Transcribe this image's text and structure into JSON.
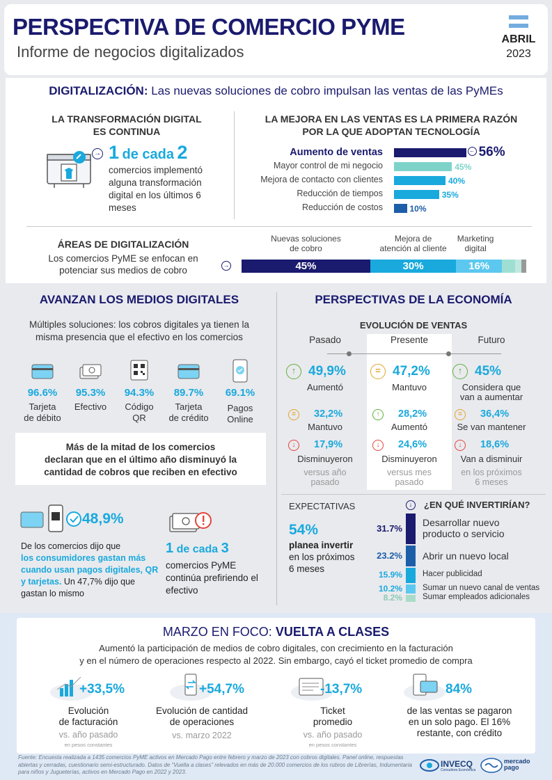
{
  "header": {
    "title": "PERSPECTIVA DE COMERCIO PYME",
    "subtitle": "Informe de negocios digitalizados",
    "month": "ABRIL",
    "year": "2023"
  },
  "digital": {
    "heading_bold": "DIGITALIZACIÓN:",
    "heading_rest": "Las nuevas soluciones de cobro impulsan las ventas de las PyMEs",
    "left_title_1": "LA TRANSFORMACIÓN DIGITAL",
    "left_title_2": "ES CONTINUA",
    "stat_a": "1",
    "stat_b": "de cada",
    "stat_c": "2",
    "stat_desc_1": "comercios implementó",
    "stat_desc_2": "alguna transformación",
    "stat_desc_3": "digital en los últimos 6",
    "stat_desc_4": "meses",
    "right_title_1": "LA MEJORA EN LAS VENTAS ES LA PRIMERA RAZÓN",
    "right_title_2": "POR LA QUE ADOPTAN TECNOLOGÍA",
    "reasons": [
      {
        "label": "Aumento de ventas",
        "value": "56%",
        "pct": 56
      },
      {
        "label": "Mayor control de mi negocio",
        "value": "45%",
        "pct": 45
      },
      {
        "label": "Mejora de contacto con clientes",
        "value": "40%",
        "pct": 40
      },
      {
        "label": "Reducción de tiempos",
        "value": "35%",
        "pct": 35
      },
      {
        "label": "Reducción de costos",
        "value": "10%",
        "pct": 10
      }
    ],
    "areas_title": "ÁREAS DE DIGITALIZACIÓN",
    "areas_desc_1": "Los comercios PyME se enfocan en",
    "areas_desc_2": "potenciar sus medios de cobro",
    "areas": [
      {
        "label_1": "Nuevas soluciones",
        "label_2": "de cobro",
        "value": "45%",
        "pct": 45,
        "color": "#1a1a6e"
      },
      {
        "label_1": "Mejora de",
        "label_2": "atención al cliente",
        "value": "30%",
        "pct": 30,
        "color": "#19a9dd"
      },
      {
        "label_1": "Marketing",
        "label_2": "digital",
        "value": "16%",
        "pct": 16,
        "color": "#5cc8ef"
      }
    ]
  },
  "medios": {
    "title": "AVANZAN LOS MEDIOS DIGITALES",
    "desc_1": "Múltiples soluciones: los cobros digitales ya tienen la",
    "desc_2": "misma presencia que el efectivo en los comercios",
    "methods": [
      {
        "value": "96.6%",
        "l1": "Tarjeta",
        "l2": "de débito",
        "icon": "debit-card-icon"
      },
      {
        "value": "95.3%",
        "l1": "Efectivo",
        "l2": "",
        "icon": "cash-icon"
      },
      {
        "value": "94.3%",
        "l1": "Código",
        "l2": "QR",
        "icon": "qr-code-icon"
      },
      {
        "value": "89.7%",
        "l1": "Tarjeta",
        "l2": "de crédito",
        "icon": "credit-card-icon"
      },
      {
        "value": "69.1%",
        "l1": "Pagos",
        "l2": "Online",
        "icon": "phone-payment-icon"
      }
    ],
    "note_1": "Más de la mitad de los comercios",
    "note_2": "declaran que en el último año disminuyó la",
    "note_3": "cantidad de cobros que reciben en efectivo",
    "digital_pct": "48,9%",
    "digital_d1": "De los comercios dijo que",
    "digital_d2": "los consumidores gastan más",
    "digital_d3": "cuando usan pagos digitales, QR",
    "digital_d4": "y tarjetas.",
    "digital_d5": "Un 47,7% dijo que",
    "digital_d6": "gastan lo mismo",
    "cash_a": "1",
    "cash_b": "de cada",
    "cash_c": "3",
    "cash_d1": "comercios PyME",
    "cash_d2": "continúa prefiriendo el",
    "cash_d3": "efectivo"
  },
  "economia": {
    "title": "PERSPECTIVAS DE LA ECONOMÍA",
    "subtitle": "EVOLUCIÓN DE VENTAS",
    "columns": [
      {
        "head": "Pasado",
        "r1v": "49,9%",
        "r1l": "Aumentó",
        "r1l2": "",
        "r2v": "32,2%",
        "r2l": "Mantuvo",
        "r3v": "17,9%",
        "r3l": "Disminuyeron",
        "foot1": "versus año",
        "foot2": "pasado",
        "i1": "up",
        "i2": "eq"
      },
      {
        "head": "Presente",
        "r1v": "47,2%",
        "r1l": "Mantuvo",
        "r1l2": "",
        "r2v": "28,2%",
        "r2l": "Aumentó",
        "r3v": "24,6%",
        "r3l": "Disminuyeron",
        "foot1": "versus mes",
        "foot2": "pasado",
        "i1": "eq",
        "i2": "up"
      },
      {
        "head": "Futuro",
        "r1v": "45%",
        "r1l": "Considera que",
        "r1l2": "van a aumentar",
        "r2v": "36,4%",
        "r2l": "Se van mantener",
        "r3v": "18,6%",
        "r3l": "Van a disminuir",
        "foot1": "en los próximos",
        "foot2": "6 meses",
        "i1": "up",
        "i2": "eq"
      }
    ],
    "exp_title": "EXPECTATIVAS",
    "exp_pct": "54%",
    "exp_d1": "planea invertir",
    "exp_d2": "en los próximos",
    "exp_d3": "6 meses",
    "inv_title": "¿EN QUÉ INVERTIRÍAN?",
    "invest": [
      {
        "value": "31.7%",
        "l1": "Desarrollar nuevo",
        "l2": "producto o servicio",
        "color": "#1a1a6e"
      },
      {
        "value": "23.2%",
        "l1": "Abrir un nuevo local",
        "l2": "",
        "color": "#1d5ea8"
      },
      {
        "value": "15.9%",
        "l1": "Hacer publicidad",
        "l2": "",
        "color": "#19a9dd"
      },
      {
        "value": "10.2%",
        "l1": "Sumar un nuevo canal de ventas",
        "l2": "",
        "color": "#5cc8ef"
      },
      {
        "value": "8.2%",
        "l1": "Sumar empleados adicionales",
        "l2": "",
        "color": "#a8dcc8"
      }
    ]
  },
  "marzo": {
    "title_a": "MARZO EN FOCO:",
    "title_b": "VUELTA A CLASES",
    "desc_1": "Aumentó la participación de medios de cobro digitales, con crecimiento en la facturación",
    "desc_2": "y en el número de operaciones respecto al 2022. Sin embargo, cayó el ticket promedio de compra",
    "items": [
      {
        "value": "+33,5%",
        "l1": "Evolución",
        "l2": "de facturación",
        "l3": "",
        "s1": "vs. año pasado",
        "s2": "en pesos constantes",
        "icon": "growth-chart-icon"
      },
      {
        "value": "+54,7%",
        "l1": "Evolución de cantidad",
        "l2": "de operaciones",
        "l3": "",
        "s1": "vs. marzo 2022",
        "s2": "",
        "icon": "phone-transfer-icon"
      },
      {
        "value": "-13,7%",
        "l1": "Ticket",
        "l2": "promedio",
        "l3": "",
        "s1": "vs. año pasado",
        "s2": "en pesos constantes",
        "icon": "receipt-icon"
      },
      {
        "value": "84%",
        "l1": "de las ventas se pagaron",
        "l2": "en un solo pago. El 16%",
        "l3": "restante, con crédito",
        "s1": "",
        "s2": "",
        "icon": "phone-card-icon"
      }
    ]
  },
  "footer": {
    "source": "Fuente: Encuesta realizada a 1435 comercios PyME activos en Mercado Pago entre febrero y marzo de 2023 con cobros digitales. Panel online, respuestas abiertas y cerradas, cuestionario semi-estructurado. Datos de “Vuelta a clases” relevados en más de 20.000 comercios de los rubros de Librerías, Indumentaria para niños y Jugueterías, activos en Mercado Pago en 2022 y 2023.",
    "logo1": "INVECQ",
    "logo1_sub": "Consultora Económica",
    "logo2_a": "mercado",
    "logo2_b": "pago"
  }
}
